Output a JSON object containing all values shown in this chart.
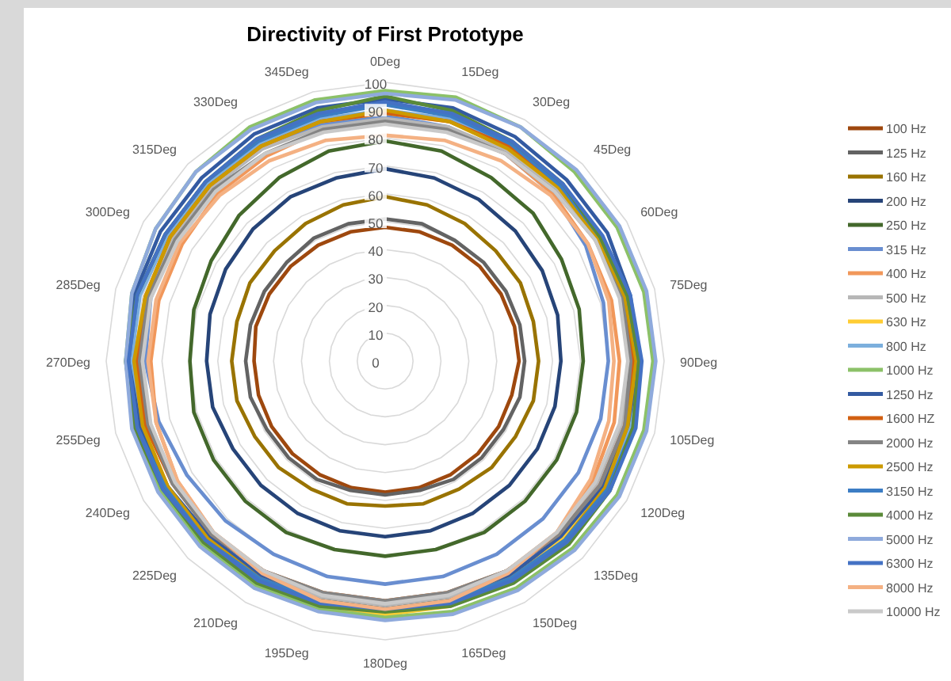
{
  "chart_data": {
    "type": "radar",
    "title": "Directivity of First Prototype",
    "categories": [
      "0Deg",
      "15Deg",
      "30Deg",
      "45Deg",
      "60Deg",
      "75Deg",
      "90Deg",
      "105Deg",
      "120Deg",
      "135Deg",
      "150Deg",
      "165Deg",
      "180Deg",
      "195Deg",
      "210Deg",
      "225Deg",
      "240Deg",
      "255Deg",
      "270Deg",
      "285Deg",
      "300Deg",
      "315Deg",
      "330Deg",
      "345Deg"
    ],
    "ylim": [
      0,
      100
    ],
    "yticks": [
      0,
      10,
      20,
      30,
      40,
      50,
      60,
      70,
      80,
      90,
      100
    ],
    "grid": true,
    "legend": "right",
    "marker": "none",
    "line_style": "solid",
    "series": [
      {
        "name": "100 Hz",
        "color": "#9e480e",
        "values": [
          48,
          48,
          48,
          48,
          48,
          48,
          48,
          47,
          47,
          47,
          47,
          47,
          47,
          47,
          47,
          47,
          47,
          47,
          47,
          48,
          48,
          48,
          48,
          48
        ]
      },
      {
        "name": "125 Hz",
        "color": "#636363",
        "values": [
          51,
          51,
          50,
          50,
          50,
          50,
          50,
          50,
          49,
          49,
          49,
          48,
          48,
          48,
          49,
          49,
          49,
          50,
          50,
          50,
          50,
          50,
          51,
          51
        ]
      },
      {
        "name": "160 Hz",
        "color": "#997300",
        "values": [
          59,
          58,
          57,
          56,
          56,
          55,
          55,
          55,
          54,
          54,
          53,
          53,
          52,
          53,
          53,
          54,
          54,
          55,
          55,
          55,
          56,
          56,
          57,
          58
        ]
      },
      {
        "name": "200 Hz",
        "color": "#264478",
        "values": [
          69,
          68,
          67,
          66,
          65,
          64,
          63,
          63,
          63,
          63,
          63,
          63,
          63,
          63,
          63,
          63,
          63,
          64,
          64,
          65,
          66,
          67,
          68,
          68
        ]
      },
      {
        "name": "250 Hz",
        "color": "#43682b",
        "values": [
          79,
          78,
          76,
          75,
          73,
          72,
          71,
          71,
          71,
          71,
          71,
          70,
          70,
          70,
          71,
          71,
          71,
          71,
          70,
          71,
          72,
          74,
          76,
          78
        ]
      },
      {
        "name": "315 Hz",
        "color": "#698ed0",
        "values": [
          88,
          87,
          86,
          85,
          83,
          81,
          80,
          80,
          80,
          80,
          80,
          80,
          80,
          80,
          80,
          81,
          82,
          84,
          86,
          87,
          88,
          88,
          88,
          88
        ]
      },
      {
        "name": "400 Hz",
        "color": "#f1975a",
        "values": [
          86,
          86,
          86,
          85,
          84,
          84,
          84,
          85,
          86,
          87,
          87,
          87,
          87,
          87,
          87,
          87,
          86,
          85,
          84,
          84,
          84,
          85,
          85,
          86
        ]
      },
      {
        "name": "500 Hz",
        "color": "#b7b7b7",
        "values": [
          87,
          87,
          87,
          87,
          87,
          88,
          88,
          88,
          88,
          88,
          88,
          88,
          88,
          88,
          88,
          88,
          88,
          88,
          88,
          88,
          88,
          88,
          88,
          87
        ]
      },
      {
        "name": "630 Hz",
        "color": "#ffcd33",
        "values": [
          89,
          89,
          88,
          88,
          88,
          89,
          90,
          90,
          90,
          90,
          90,
          91,
          91,
          91,
          90,
          90,
          90,
          90,
          90,
          89,
          89,
          89,
          89,
          89
        ]
      },
      {
        "name": "800 Hz",
        "color": "#7cafdd",
        "values": [
          90,
          90,
          89,
          89,
          89,
          90,
          91,
          91,
          91,
          91,
          90,
          90,
          89,
          90,
          90,
          90,
          91,
          91,
          91,
          91,
          90,
          90,
          90,
          90
        ]
      },
      {
        "name": "1000 Hz",
        "color": "#8cc168",
        "values": [
          97,
          98,
          97,
          96,
          96,
          96,
          96,
          96,
          96,
          95,
          94,
          93,
          92,
          92,
          93,
          93,
          93,
          93,
          93,
          94,
          95,
          96,
          97,
          97
        ]
      },
      {
        "name": "1250 Hz",
        "color": "#335aa1",
        "values": [
          94,
          94,
          93,
          92,
          92,
          91,
          91,
          90,
          90,
          89,
          89,
          89,
          89,
          89,
          89,
          89,
          90,
          91,
          92,
          93,
          93,
          93,
          94,
          94
        ]
      },
      {
        "name": "1600 HZ",
        "color": "#d26012",
        "values": [
          89,
          89,
          89,
          89,
          89,
          89,
          89,
          89,
          89,
          88,
          87,
          86,
          86,
          86,
          87,
          88,
          88,
          89,
          89,
          89,
          89,
          89,
          89,
          89
        ]
      },
      {
        "name": "2000 Hz",
        "color": "#848484",
        "values": [
          86,
          86,
          86,
          86,
          87,
          88,
          88,
          89,
          89,
          88,
          87,
          86,
          86,
          86,
          87,
          88,
          88,
          88,
          88,
          88,
          87,
          87,
          86,
          86
        ]
      },
      {
        "name": "2500 Hz",
        "color": "#cc9a00",
        "values": [
          90,
          89,
          88,
          88,
          88,
          89,
          90,
          90,
          91,
          91,
          90,
          89,
          89,
          89,
          90,
          90,
          90,
          90,
          90,
          89,
          89,
          89,
          89,
          89
        ]
      },
      {
        "name": "3150 Hz",
        "color": "#3c7dc4",
        "values": [
          92,
          91,
          90,
          89,
          89,
          90,
          91,
          92,
          92,
          91,
          90,
          89,
          89,
          89,
          90,
          91,
          91,
          92,
          92,
          92,
          91,
          91,
          91,
          91
        ]
      },
      {
        "name": "4000 Hz",
        "color": "#5a8a39",
        "values": [
          95,
          93,
          91,
          90,
          89,
          90,
          91,
          92,
          93,
          93,
          92,
          91,
          90,
          91,
          92,
          92,
          92,
          93,
          93,
          92,
          91,
          91,
          92,
          93
        ]
      },
      {
        "name": "5000 Hz",
        "color": "#8faadc",
        "values": [
          96,
          97,
          97,
          97,
          97,
          97,
          97,
          97,
          97,
          96,
          95,
          94,
          93,
          93,
          94,
          94,
          94,
          94,
          93,
          94,
          95,
          96,
          96,
          96
        ]
      },
      {
        "name": "6300 Hz",
        "color": "#4472c4",
        "values": [
          93,
          92,
          91,
          90,
          90,
          91,
          92,
          93,
          93,
          92,
          91,
          90,
          89,
          90,
          91,
          91,
          92,
          92,
          92,
          92,
          91,
          91,
          92,
          92
        ]
      },
      {
        "name": "8000 Hz",
        "color": "#f4b183",
        "values": [
          81,
          82,
          83,
          84,
          84,
          83,
          82,
          83,
          85,
          87,
          88,
          89,
          89,
          89,
          88,
          87,
          86,
          85,
          85,
          85,
          85,
          84,
          83,
          82
        ]
      },
      {
        "name": "10000 Hz",
        "color": "#c9c9c9",
        "values": [
          85,
          85,
          86,
          86,
          87,
          87,
          87,
          87,
          87,
          87,
          87,
          87,
          87,
          87,
          87,
          87,
          87,
          87,
          87,
          87,
          86,
          86,
          86,
          85
        ]
      }
    ]
  }
}
